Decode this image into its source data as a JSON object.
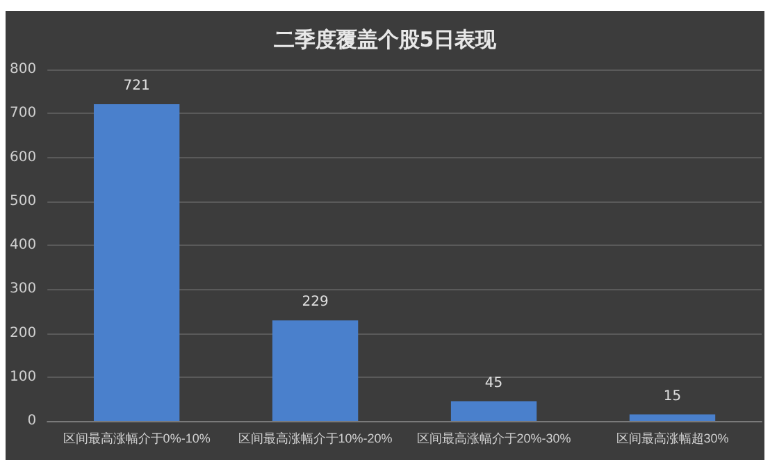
{
  "chart_data": {
    "type": "bar",
    "title": "二季度覆盖个股5日表现",
    "categories": [
      "区间最高涨幅介于0%-10%",
      "区间最高涨幅介于10%-20%",
      "区间最高涨幅介于20%-30%",
      "区间最高涨幅超30%"
    ],
    "values": [
      721,
      229,
      45,
      15
    ],
    "color": "#4a80cc",
    "ylim": [
      0,
      800
    ],
    "yticks": [
      0,
      100,
      200,
      300,
      400,
      500,
      600,
      700,
      800
    ],
    "grid": "y",
    "data_labels": true
  }
}
